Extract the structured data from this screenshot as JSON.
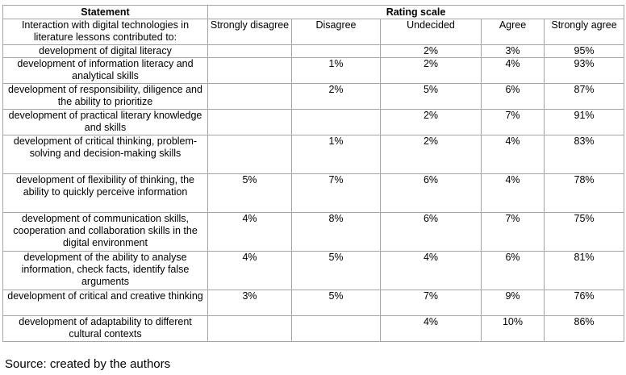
{
  "table": {
    "header": {
      "statement": "Statement",
      "rating_scale": "Rating scale"
    },
    "subheader": {
      "statement_intro": "Interaction with digital technologies in literature lessons contributed to:",
      "columns": [
        "Strongly disagree",
        "Disagree",
        "Undecided",
        "Agree",
        "Strongly agree"
      ]
    },
    "rows": [
      {
        "statement": "development of digital literacy",
        "values": [
          "",
          "",
          "2%",
          "3%",
          "95%"
        ]
      },
      {
        "statement": "development of information literacy and analytical skills",
        "values": [
          "",
          "1%",
          "2%",
          "4%",
          "93%"
        ]
      },
      {
        "statement": "development of responsibility, diligence and the ability to prioritize",
        "values": [
          "",
          "2%",
          "5%",
          "6%",
          "87%"
        ]
      },
      {
        "statement": "development of practical literary knowledge and skills",
        "values": [
          "",
          "",
          "2%",
          "7%",
          "91%"
        ]
      },
      {
        "statement": "development of critical thinking, problem-solving and decision-making skills",
        "values": [
          "",
          "1%",
          "2%",
          "4%",
          "83%"
        ]
      },
      {
        "statement": "development of flexibility of thinking, the ability to quickly perceive information",
        "values": [
          "5%",
          "7%",
          "6%",
          "4%",
          "78%"
        ]
      },
      {
        "statement": "development of communication skills, cooperation and collaboration skills in the digital environment",
        "values": [
          "4%",
          "8%",
          "6%",
          "7%",
          "75%"
        ]
      },
      {
        "statement": "development of the ability to analyse information, check facts, identify false arguments",
        "values": [
          "4%",
          "5%",
          "4%",
          "6%",
          "81%"
        ]
      },
      {
        "statement": "development of critical and creative thinking",
        "values": [
          "3%",
          "5%",
          "7%",
          "9%",
          "76%"
        ]
      },
      {
        "statement": "development of adaptability to different cultural contexts",
        "values": [
          "",
          "",
          "4%",
          "10%",
          "86%"
        ]
      }
    ]
  },
  "source_note": "Source: created by the authors"
}
